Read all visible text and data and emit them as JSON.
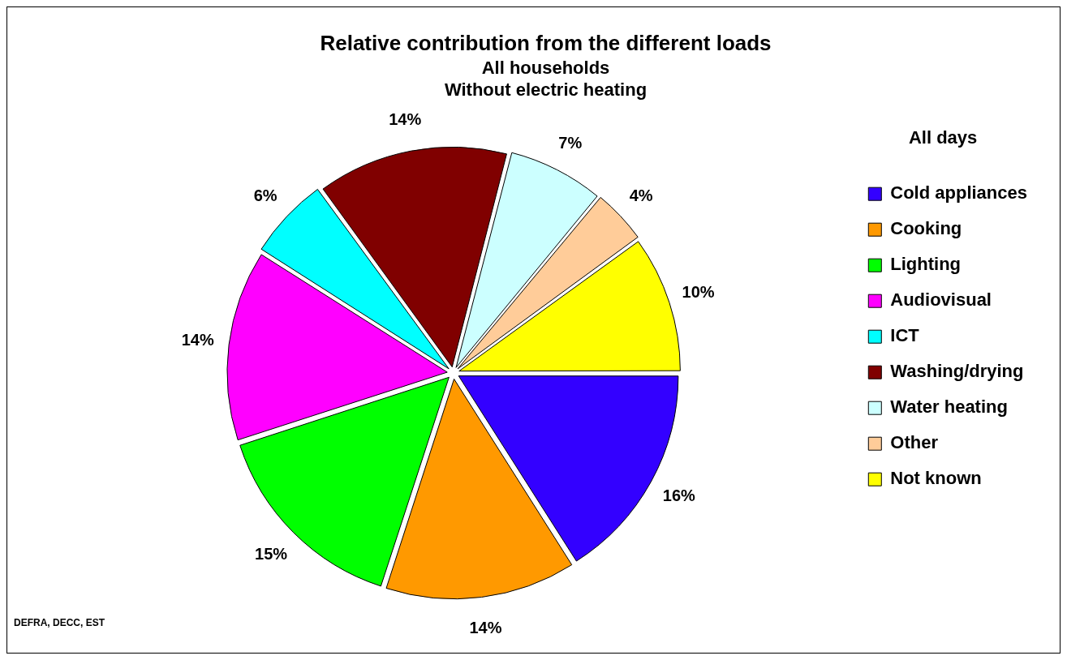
{
  "chart_data": {
    "type": "pie",
    "title": "Relative contribution from the different loads",
    "subtitle": "All households\nWithout electric heating",
    "legend_title": "All days",
    "legend": "right",
    "categories": [
      "Cold appliances",
      "Cooking",
      "Lighting",
      "Audiovisual",
      "ICT",
      "Washing/drying",
      "Water heating",
      "Other",
      "Not known"
    ],
    "values": [
      16,
      14,
      15,
      14,
      6,
      14,
      7,
      4,
      10
    ],
    "colors": [
      "#3300ff",
      "#ff9900",
      "#00ff00",
      "#ff00ff",
      "#00ffff",
      "#800000",
      "#ccffff",
      "#ffcc99",
      "#ffff00"
    ],
    "value_labels": [
      "16%",
      "14%",
      "15%",
      "14%",
      "6%",
      "14%",
      "7%",
      "4%",
      "10%"
    ],
    "annotations": [
      "DEFRA, DECC, EST"
    ]
  }
}
